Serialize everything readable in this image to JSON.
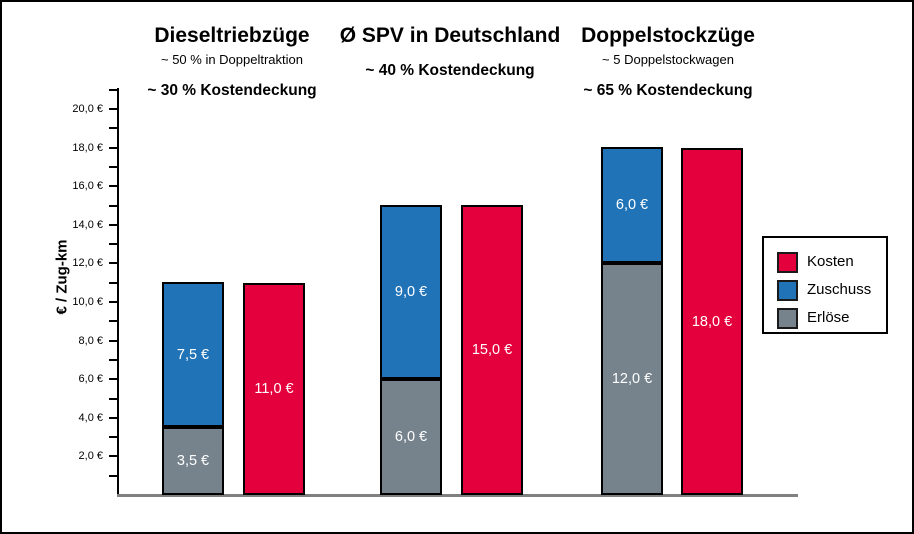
{
  "groups": [
    {
      "title": "Dieseltriebzüge",
      "subtitle": "~ 50 % in Doppeltraktion",
      "coverage": "~ 30 %  Kostendeckung"
    },
    {
      "title": "Ø SPV in Deutschland",
      "subtitle": "",
      "coverage": "~ 40 %  Kostendeckung"
    },
    {
      "title": "Doppelstockzüge",
      "subtitle": "~ 5  Doppelstockwagen",
      "coverage": "~ 65 %  Kostendeckung"
    }
  ],
  "y_axis": {
    "label": "€ / Zug-km",
    "tick_labels": [
      "2,0 €",
      "4,0 €",
      "6,0 €",
      "8,0 €",
      "10,0 €",
      "12,0 €",
      "14,0 €",
      "16,0 €",
      "18,0 €",
      "20,0 €"
    ]
  },
  "legend": {
    "items": [
      {
        "label": "Kosten",
        "color": "#E4003C"
      },
      {
        "label": "Zuschuss",
        "color": "#2173B8"
      },
      {
        "label": "Erlöse",
        "color": "#76838C"
      }
    ]
  },
  "colors": {
    "kosten": "#E4003C",
    "zuschuss": "#2173B8",
    "erloese": "#76838C",
    "baseline": "#808080"
  },
  "chart_data": {
    "type": "bar",
    "subtype": "paired: stacked (Erlöse+Zuschuss) next to single (Kosten) per category",
    "categories": [
      "Dieseltriebzüge",
      "Ø SPV in Deutschland",
      "Doppelstockzüge"
    ],
    "series": [
      {
        "name": "Erlöse",
        "values": [
          3.5,
          6.0,
          12.0
        ],
        "labels": [
          "3,5 €",
          "6,0 €",
          "12,0 €"
        ],
        "color": "#76838C"
      },
      {
        "name": "Zuschuss",
        "values": [
          7.5,
          9.0,
          6.0
        ],
        "labels": [
          "7,5 €",
          "9,0 €",
          "6,0 €"
        ],
        "color": "#2173B8"
      },
      {
        "name": "Kosten",
        "values": [
          11.0,
          15.0,
          18.0
        ],
        "labels": [
          "11,0 €",
          "15,0 €",
          "18,0 €"
        ],
        "color": "#E4003C"
      }
    ],
    "annotations": {
      "category_subtitles": [
        "~ 50 % in Doppeltraktion",
        "",
        "~ 5  Doppelstockwagen"
      ],
      "category_coverage": [
        "~ 30 %  Kostendeckung",
        "~ 40 %  Kostendeckung",
        "~ 65 %  Kostendeckung"
      ]
    },
    "title": "",
    "xlabel": "",
    "ylabel": "€ / Zug-km",
    "ylim": [
      0,
      21
    ],
    "ytick_minor_step": 1,
    "ytick_labeled_step": 2,
    "grid": false,
    "legend_position": "right"
  }
}
